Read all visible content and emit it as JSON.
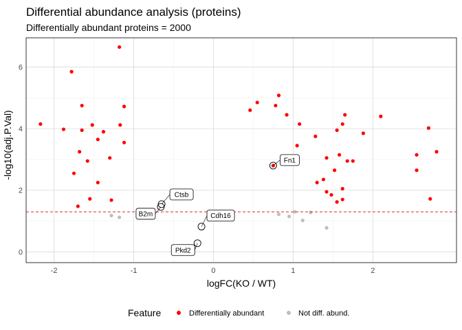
{
  "chart_data": {
    "type": "scatter",
    "title": "Differential abundance analysis (proteins)",
    "subtitle": "Differentially abundant proteins =  2000",
    "xlabel": "logFC(KO / WT)",
    "ylabel": "-log10(adj.P.Val)",
    "xlim": [
      -2.35,
      3.05
    ],
    "ylim": [
      -0.35,
      6.95
    ],
    "x_ticks": [
      -2,
      -1,
      0,
      1,
      2
    ],
    "y_ticks": [
      0,
      2,
      4,
      6
    ],
    "grid": true,
    "threshold_line": {
      "y": 1.3,
      "style": "dashed",
      "color": "#d62728"
    },
    "legend": {
      "position": "bottom",
      "title": "Feature",
      "entries": [
        {
          "label": "Differentially abundant",
          "color": "#ff0000"
        },
        {
          "label": "Not diff. abund.",
          "color": "#bebebe"
        }
      ]
    },
    "series": [
      {
        "name": "Differentially abundant",
        "color": "#ff0000",
        "points": [
          [
            -1.18,
            6.65
          ],
          [
            -1.78,
            5.85
          ],
          [
            -1.65,
            4.75
          ],
          [
            -1.12,
            4.72
          ],
          [
            -2.17,
            4.15
          ],
          [
            -1.88,
            3.98
          ],
          [
            -1.52,
            4.12
          ],
          [
            -1.65,
            3.95
          ],
          [
            -1.38,
            3.9
          ],
          [
            -1.17,
            4.12
          ],
          [
            -1.45,
            3.65
          ],
          [
            -1.68,
            3.25
          ],
          [
            -1.58,
            2.95
          ],
          [
            -1.75,
            2.55
          ],
          [
            -1.45,
            2.25
          ],
          [
            -1.3,
            3.05
          ],
          [
            -1.12,
            3.55
          ],
          [
            -1.55,
            1.72
          ],
          [
            -1.7,
            1.48
          ],
          [
            -1.28,
            1.68
          ],
          [
            0.82,
            5.08
          ],
          [
            0.55,
            4.85
          ],
          [
            0.78,
            4.75
          ],
          [
            0.46,
            4.6
          ],
          [
            0.92,
            4.45
          ],
          [
            1.08,
            4.15
          ],
          [
            1.28,
            3.75
          ],
          [
            1.05,
            3.45
          ],
          [
            1.55,
            3.95
          ],
          [
            1.65,
            4.45
          ],
          [
            1.62,
            4.15
          ],
          [
            1.88,
            3.85
          ],
          [
            2.1,
            4.4
          ],
          [
            1.42,
            3.05
          ],
          [
            1.58,
            3.15
          ],
          [
            1.68,
            2.95
          ],
          [
            1.52,
            2.65
          ],
          [
            1.75,
            2.95
          ],
          [
            1.38,
            2.35
          ],
          [
            1.62,
            2.05
          ],
          [
            1.48,
            1.85
          ],
          [
            1.55,
            1.62
          ],
          [
            1.62,
            1.7
          ],
          [
            1.3,
            2.25
          ],
          [
            1.42,
            1.95
          ],
          [
            2.55,
            3.15
          ],
          [
            2.55,
            2.65
          ],
          [
            2.7,
            4.02
          ],
          [
            2.72,
            1.72
          ],
          [
            2.8,
            3.25
          ],
          [
            0.75,
            2.8
          ]
        ]
      },
      {
        "name": "Not diff. abund.",
        "color": "#bebebe",
        "points": [
          [
            1.02,
            1.3
          ],
          [
            1.22,
            1.28
          ],
          [
            1.42,
            0.78
          ],
          [
            -1.18,
            1.12
          ],
          [
            -1.28,
            1.18
          ],
          [
            0.82,
            1.22
          ],
          [
            0.95,
            1.15
          ],
          [
            1.12,
            1.02
          ],
          [
            -0.92,
            1.25
          ],
          [
            -0.85,
            1.2
          ]
        ]
      }
    ],
    "highlighted": [
      {
        "label": "Fn1",
        "x": 0.75,
        "y": 2.8
      },
      {
        "label": "Ctsb",
        "x": -0.65,
        "y": 1.55
      },
      {
        "label": "B2m",
        "x": -0.66,
        "y": 1.46
      },
      {
        "label": "Cdh16",
        "x": -0.15,
        "y": 0.82
      },
      {
        "label": "Pkd2",
        "x": -0.2,
        "y": 0.28
      }
    ]
  }
}
